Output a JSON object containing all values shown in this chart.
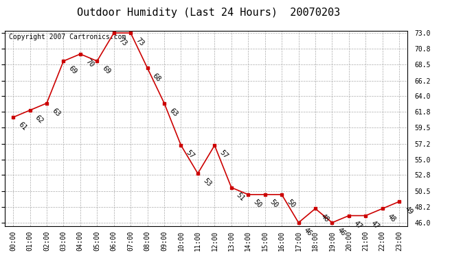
{
  "title": "Outdoor Humidity (Last 24 Hours)  20070203",
  "copyright_text": "Copyright 2007 Cartronics.com",
  "hours": [
    "00:00",
    "01:00",
    "02:00",
    "03:00",
    "04:00",
    "05:00",
    "06:00",
    "07:00",
    "08:00",
    "09:00",
    "10:00",
    "11:00",
    "12:00",
    "13:00",
    "14:00",
    "15:00",
    "16:00",
    "17:00",
    "18:00",
    "19:00",
    "20:00",
    "21:00",
    "22:00",
    "23:00"
  ],
  "values": [
    61,
    62,
    63,
    69,
    70,
    69,
    73,
    73,
    68,
    63,
    57,
    53,
    57,
    51,
    50,
    50,
    50,
    46,
    48,
    46,
    47,
    47,
    48,
    49
  ],
  "ylim_min": 46.0,
  "ylim_max": 73.0,
  "yticks": [
    46.0,
    48.2,
    50.5,
    52.8,
    55.0,
    57.2,
    59.5,
    61.8,
    64.0,
    66.2,
    68.5,
    70.8,
    73.0
  ],
  "line_color": "#cc0000",
  "marker_color": "#cc0000",
  "bg_color": "#ffffff",
  "grid_color": "#aaaaaa",
  "title_fontsize": 11,
  "tick_fontsize": 7,
  "annotation_fontsize": 7.5,
  "copyright_fontsize": 7
}
